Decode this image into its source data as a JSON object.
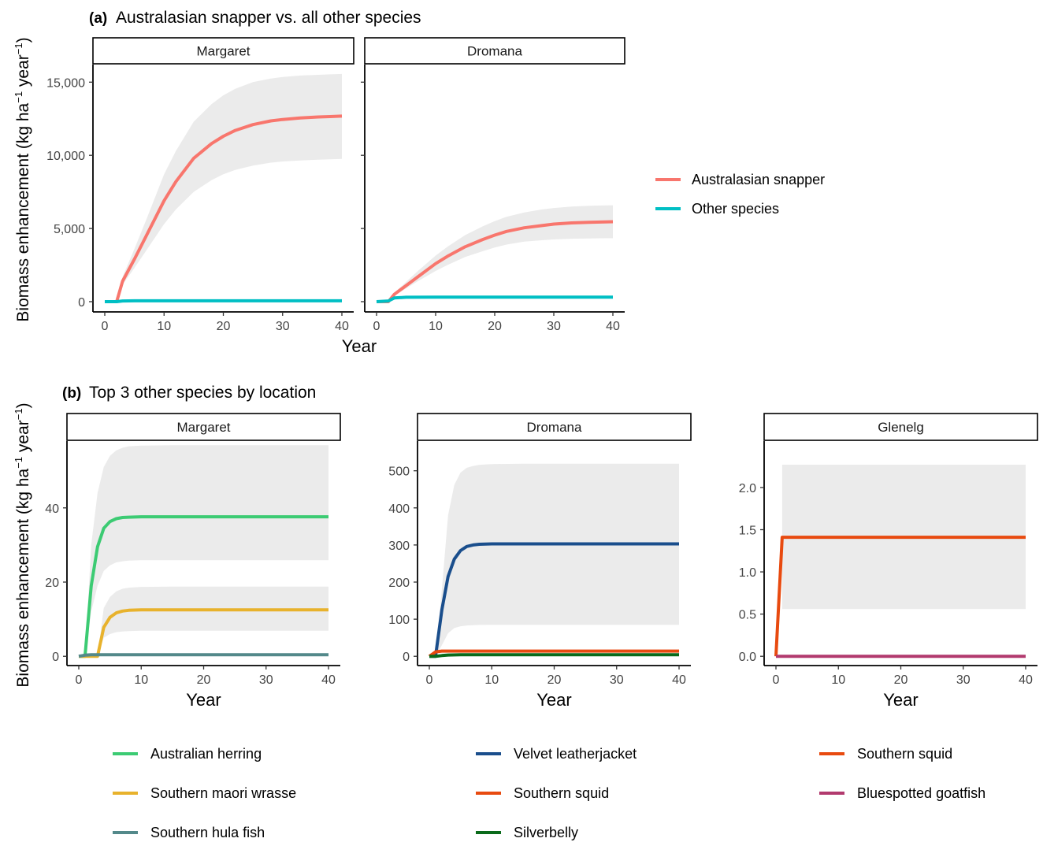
{
  "panels": [
    {
      "label": "(a)",
      "title": "Australasian snapper vs. all other species",
      "ylabel_main": "Biomass enhancement (kg  ha",
      "ylabel_sup1": "−1",
      "ylabel_mid": " year",
      "ylabel_sup2": "−1",
      "ylabel_end": ")",
      "xlabel": "Year",
      "legend": [
        {
          "name": "Australasian snapper",
          "color": "#F8766D"
        },
        {
          "name": "Other species",
          "color": "#00BFC4"
        }
      ]
    },
    {
      "label": "(b)",
      "title": "Top 3 other species by location",
      "ylabel_main": "Biomass enhancement (kg  ha",
      "ylabel_sup1": "−1",
      "ylabel_mid": " year",
      "ylabel_sup2": "−1",
      "ylabel_end": ")",
      "xlabel": "Year"
    }
  ],
  "chart_data": [
    {
      "type": "line",
      "panel": "a",
      "facet": "Margaret",
      "xlim": [
        0,
        40
      ],
      "ylim": [
        -700,
        16200
      ],
      "xticks": [
        0,
        10,
        20,
        30,
        40
      ],
      "yticks": [
        0,
        5000,
        10000,
        15000
      ],
      "ytick_labels": [
        "0",
        "5,000",
        "10,000",
        "15,000"
      ],
      "series": [
        {
          "name": "Australasian snapper",
          "color": "#F8766D",
          "x": [
            0,
            2,
            3,
            5,
            7,
            10,
            12,
            15,
            18,
            20,
            22,
            25,
            28,
            30,
            33,
            36,
            38,
            40
          ],
          "y": [
            0,
            0,
            1400,
            2900,
            4500,
            6900,
            8200,
            9800,
            10800,
            11300,
            11700,
            12100,
            12350,
            12450,
            12550,
            12620,
            12650,
            12680
          ],
          "band_low": [
            0,
            0,
            1150,
            2300,
            3500,
            5300,
            6300,
            7500,
            8300,
            8700,
            9000,
            9300,
            9500,
            9580,
            9650,
            9700,
            9730,
            9750
          ],
          "band_high": [
            0,
            0,
            1700,
            3600,
            5600,
            8700,
            10300,
            12300,
            13500,
            14100,
            14550,
            15000,
            15250,
            15350,
            15450,
            15500,
            15530,
            15560
          ]
        },
        {
          "name": "Other species",
          "color": "#00BFC4",
          "x": [
            0,
            2,
            3,
            5,
            10,
            20,
            30,
            40
          ],
          "y": [
            0,
            0,
            50,
            60,
            60,
            60,
            60,
            60
          ]
        }
      ]
    },
    {
      "type": "line",
      "panel": "a",
      "facet": "Dromana",
      "xlim": [
        0,
        40
      ],
      "ylim": [
        -700,
        16200
      ],
      "xticks": [
        0,
        10,
        20,
        30,
        40
      ],
      "series": [
        {
          "name": "Australasian snapper",
          "color": "#F8766D",
          "x": [
            0,
            2,
            3,
            5,
            7,
            10,
            12,
            15,
            18,
            20,
            22,
            25,
            28,
            30,
            33,
            36,
            38,
            40
          ],
          "y": [
            0,
            0,
            500,
            1100,
            1700,
            2600,
            3100,
            3750,
            4250,
            4550,
            4800,
            5050,
            5200,
            5300,
            5380,
            5420,
            5440,
            5460
          ],
          "band_low": [
            0,
            0,
            400,
            900,
            1400,
            2100,
            2500,
            3050,
            3450,
            3700,
            3900,
            4100,
            4200,
            4250,
            4300,
            4320,
            4330,
            4340
          ],
          "band_high": [
            0,
            0,
            600,
            1350,
            2100,
            3150,
            3750,
            4550,
            5150,
            5500,
            5800,
            6100,
            6300,
            6400,
            6500,
            6550,
            6570,
            6590
          ]
        },
        {
          "name": "Other species",
          "color": "#00BFC4",
          "x": [
            0,
            2,
            3,
            5,
            10,
            20,
            30,
            40
          ],
          "y": [
            0,
            50,
            250,
            300,
            310,
            310,
            310,
            310
          ]
        }
      ]
    },
    {
      "type": "line",
      "panel": "b",
      "facet": "Margaret",
      "xlim": [
        0,
        40
      ],
      "ylim": [
        -2.5,
        58
      ],
      "xticks": [
        0,
        10,
        20,
        30,
        40
      ],
      "yticks": [
        0,
        20,
        40
      ],
      "legend": [
        {
          "name": "Australian herring",
          "color": "#3CCB73"
        },
        {
          "name": "Southern maori wrasse",
          "color": "#E8B22C"
        },
        {
          "name": "Southern hula fish",
          "color": "#53898A"
        }
      ],
      "bands": [
        {
          "x": [
            1,
            2,
            3,
            4,
            5,
            6,
            7,
            8,
            10,
            15,
            20,
            30,
            40
          ],
          "low": [
            0,
            12,
            19,
            23,
            24.5,
            25.3,
            25.6,
            25.8,
            25.9,
            25.9,
            25.9,
            25.9,
            25.9
          ],
          "high": [
            0,
            30,
            44,
            51,
            54,
            55.5,
            56.2,
            56.6,
            56.8,
            56.9,
            56.9,
            56.9,
            56.9
          ]
        },
        {
          "x": [
            3,
            4,
            5,
            6,
            7,
            8,
            10,
            15,
            20,
            30,
            40
          ],
          "low": [
            0,
            5,
            6,
            6.5,
            6.7,
            6.8,
            6.9,
            6.9,
            6.9,
            6.9,
            6.9
          ],
          "high": [
            0,
            13,
            16,
            17.5,
            18.2,
            18.5,
            18.7,
            18.8,
            18.8,
            18.8,
            18.8
          ]
        }
      ],
      "series": [
        {
          "name": "Australian herring",
          "color": "#3CCB73",
          "x": [
            0,
            1,
            2,
            3,
            4,
            5,
            6,
            7,
            8,
            10,
            15,
            20,
            30,
            40
          ],
          "y": [
            0,
            0,
            19,
            29.5,
            34.5,
            36.3,
            37.1,
            37.4,
            37.5,
            37.6,
            37.6,
            37.6,
            37.6,
            37.6
          ]
        },
        {
          "name": "Southern maori wrasse",
          "color": "#E8B22C",
          "x": [
            0,
            3,
            4,
            5,
            6,
            7,
            8,
            10,
            15,
            20,
            30,
            40
          ],
          "y": [
            0,
            0,
            7.8,
            10.5,
            11.7,
            12.2,
            12.4,
            12.5,
            12.5,
            12.5,
            12.5,
            12.5
          ]
        },
        {
          "name": "Southern hula fish",
          "color": "#53898A",
          "x": [
            0,
            1,
            2,
            5,
            10,
            20,
            30,
            40
          ],
          "y": [
            0,
            0.3,
            0.4,
            0.4,
            0.4,
            0.4,
            0.4,
            0.4
          ]
        }
      ]
    },
    {
      "type": "line",
      "panel": "b",
      "facet": "Dromana",
      "xlim": [
        0,
        40
      ],
      "ylim": [
        -25,
        580
      ],
      "xticks": [
        0,
        10,
        20,
        30,
        40
      ],
      "yticks": [
        0,
        100,
        200,
        300,
        400,
        500
      ],
      "legend": [
        {
          "name": "Velvet leatherjacket",
          "color": "#1A4E8C"
        },
        {
          "name": "Southern squid",
          "color": "#E84A0F"
        },
        {
          "name": "Silverbelly",
          "color": "#0A6A1A"
        }
      ],
      "bands": [
        {
          "x": [
            1,
            2,
            3,
            4,
            5,
            6,
            7,
            8,
            10,
            15,
            20,
            30,
            40
          ],
          "low": [
            0,
            30,
            62,
            76,
            81,
            83,
            84,
            84.5,
            85,
            85,
            85,
            85,
            85
          ],
          "high": [
            0,
            180,
            380,
            462,
            495,
            508,
            513,
            516,
            518,
            519,
            519,
            519,
            519
          ]
        }
      ],
      "series": [
        {
          "name": "Velvet leatherjacket",
          "color": "#1A4E8C",
          "x": [
            0,
            1,
            2,
            3,
            4,
            5,
            6,
            7,
            8,
            10,
            15,
            20,
            30,
            40
          ],
          "y": [
            0,
            0,
            125,
            215,
            262,
            285,
            296,
            300,
            302,
            303,
            303,
            303,
            303,
            303
          ]
        },
        {
          "name": "Southern squid",
          "color": "#E84A0F",
          "x": [
            0,
            1,
            2,
            5,
            10,
            20,
            30,
            40
          ],
          "y": [
            0,
            12,
            14,
            14,
            14,
            14,
            14,
            14
          ]
        },
        {
          "name": "Silverbelly",
          "color": "#0A6A1A",
          "x": [
            0,
            1,
            2,
            3,
            5,
            10,
            20,
            30,
            40
          ],
          "y": [
            0,
            0,
            2,
            3.5,
            4,
            4,
            4,
            4,
            4
          ]
        }
      ]
    },
    {
      "type": "line",
      "panel": "b",
      "facet": "Glenelg",
      "xlim": [
        0,
        40
      ],
      "ylim": [
        -0.11,
        2.55
      ],
      "xticks": [
        0,
        10,
        20,
        30,
        40
      ],
      "yticks": [
        0,
        0.5,
        1,
        1.5,
        2
      ],
      "ytick_labels": [
        "0.0",
        "0.5",
        "1.0",
        "1.5",
        "2.0"
      ],
      "legend": [
        {
          "name": "Southern squid",
          "color": "#E84A0F"
        },
        {
          "name": "Bluespotted goatfish",
          "color": "#B23A6E"
        }
      ],
      "bands": [
        {
          "x": [
            1,
            40
          ],
          "low": [
            0.56,
            0.56
          ],
          "high": [
            2.27,
            2.27
          ]
        }
      ],
      "series": [
        {
          "name": "Southern squid",
          "color": "#E84A0F",
          "x": [
            0,
            1,
            40
          ],
          "y": [
            0,
            1.41,
            1.41
          ]
        },
        {
          "name": "Bluespotted goatfish",
          "color": "#B23A6E",
          "x": [
            0,
            40
          ],
          "y": [
            0,
            0
          ]
        }
      ]
    }
  ]
}
